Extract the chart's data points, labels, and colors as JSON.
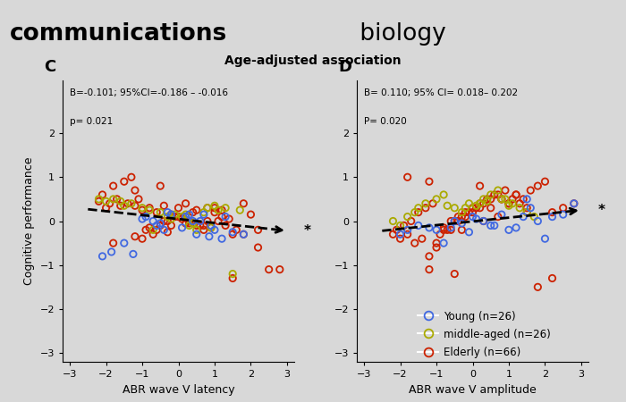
{
  "title_bold": "communications",
  "title_regular": " biology",
  "subtitle": "Age-adjusted association",
  "panel_C": {
    "label": "C",
    "annotation_line1": "B=-0.101; 95%CI=-0.186 – -0.016",
    "annotation_line2": "p= 0.021",
    "xlabel": "ABR wave V latency",
    "ylabel": "Cognitive performance",
    "xlim": [
      -3.2,
      3.2
    ],
    "ylim": [
      -3.2,
      3.2
    ],
    "xticks": [
      -3,
      -2,
      -1,
      0,
      1,
      2,
      3
    ],
    "yticks": [
      -3,
      -2,
      -1,
      0,
      1,
      2
    ],
    "trend_x_start": -2.5,
    "trend_x_end": 3.0,
    "trend_y_start": 0.27,
    "trend_y_end": -0.22,
    "young_x": [
      -1.85,
      -1.25,
      0.3,
      0.5,
      1.2,
      -0.5,
      0.1,
      -0.3,
      -2.1,
      1.5,
      0.9,
      -0.7,
      0.2,
      1.0,
      -1.5,
      0.6,
      -0.2,
      1.8,
      -1.0,
      0.4,
      -0.6,
      1.3,
      -0.4,
      0.7,
      -0.9,
      0.85
    ],
    "young_y": [
      -0.7,
      -0.75,
      0.15,
      -0.3,
      -0.4,
      -0.05,
      -0.15,
      0.2,
      -0.8,
      -0.25,
      -0.1,
      0.0,
      0.1,
      -0.2,
      -0.5,
      0.0,
      0.15,
      -0.3,
      0.05,
      0.0,
      -0.1,
      0.1,
      -0.2,
      0.15,
      0.1,
      -0.35
    ],
    "middleaged_x": [
      -2.0,
      -1.8,
      -1.5,
      -1.3,
      -1.0,
      -0.8,
      -0.5,
      -0.3,
      -0.1,
      0.1,
      0.3,
      0.5,
      0.7,
      0.9,
      1.1,
      1.3,
      1.5,
      1.7,
      -1.6,
      -0.7,
      0.2,
      0.8,
      -2.2,
      -0.2,
      0.4,
      1.0
    ],
    "middleaged_y": [
      0.45,
      0.5,
      0.35,
      0.4,
      0.3,
      0.25,
      0.2,
      0.1,
      0.15,
      0.1,
      -0.1,
      -0.2,
      0.2,
      -0.15,
      0.25,
      0.3,
      -1.2,
      0.25,
      0.45,
      -0.2,
      0.15,
      0.3,
      0.5,
      0.05,
      -0.05,
      0.35
    ],
    "elderly_x": [
      -2.2,
      -2.0,
      -1.8,
      -1.6,
      -1.4,
      -1.2,
      -1.0,
      -0.8,
      -0.6,
      -0.4,
      -0.2,
      0.0,
      0.2,
      0.4,
      0.6,
      0.8,
      1.0,
      1.2,
      1.4,
      1.6,
      1.8,
      2.0,
      -2.1,
      -1.9,
      -1.7,
      -1.5,
      -1.3,
      -1.1,
      -0.9,
      -0.7,
      -0.5,
      -0.3,
      -0.1,
      0.1,
      0.3,
      0.5,
      0.7,
      0.9,
      1.1,
      1.3,
      1.5,
      2.2,
      2.8,
      -0.8,
      -0.6,
      -0.4,
      -0.2,
      0.0,
      0.2,
      0.8,
      1.0,
      1.2,
      -1.2,
      -1.0,
      -0.3,
      0.5,
      1.5,
      2.5,
      0.3,
      0.7,
      1.8,
      2.2,
      -0.5,
      -1.8,
      -1.2,
      0.2
    ],
    "elderly_y": [
      0.45,
      0.3,
      0.8,
      0.35,
      0.4,
      0.7,
      0.25,
      0.3,
      0.2,
      0.35,
      0.15,
      0.3,
      0.1,
      0.2,
      -0.1,
      0.0,
      0.3,
      0.1,
      0.05,
      -0.2,
      0.4,
      0.15,
      0.6,
      0.4,
      0.5,
      0.9,
      1.0,
      0.5,
      -0.2,
      -0.3,
      -0.1,
      0.0,
      0.1,
      0.05,
      -0.05,
      -0.1,
      -0.2,
      -0.15,
      0.0,
      -0.1,
      -0.3,
      -0.6,
      -1.1,
      -0.15,
      -0.2,
      0.0,
      -0.1,
      0.1,
      -0.05,
      0.3,
      0.2,
      0.25,
      -0.35,
      -0.4,
      -0.25,
      0.25,
      -1.3,
      -1.1,
      0.0,
      -0.1,
      -0.3,
      -0.2,
      0.8,
      -0.5,
      0.35,
      0.4
    ]
  },
  "panel_D": {
    "label": "D",
    "annotation_line1": "B= 0.110; 95% CI= 0.018– 0.202",
    "annotation_line2": "P= 0.020",
    "xlabel": "ABR wave V amplitude",
    "ylabel": "",
    "xlim": [
      -3.2,
      3.2
    ],
    "ylim": [
      -3.2,
      3.2
    ],
    "xticks": [
      -3,
      -2,
      -1,
      0,
      1,
      2,
      3
    ],
    "yticks": [
      -3,
      -2,
      -1,
      0,
      1,
      2
    ],
    "trend_x_start": -2.5,
    "trend_x_end": 3.0,
    "trend_y_start": -0.22,
    "trend_y_end": 0.25,
    "young_x": [
      -2.0,
      -1.5,
      -1.0,
      0.5,
      1.0,
      1.5,
      2.0,
      2.5,
      -0.5,
      0.0,
      1.8,
      -0.8,
      0.3,
      1.2,
      -1.2,
      0.8,
      2.2,
      -0.3,
      0.6,
      1.6,
      -0.6,
      2.8,
      -1.8,
      0.1,
      1.4,
      -0.1
    ],
    "young_y": [
      -0.3,
      -0.1,
      -0.2,
      -0.1,
      -0.2,
      0.5,
      -0.4,
      0.15,
      0.0,
      0.1,
      0.0,
      -0.5,
      0.0,
      -0.15,
      -0.15,
      0.15,
      0.1,
      -0.05,
      -0.1,
      0.3,
      -0.15,
      0.4,
      -0.2,
      0.05,
      0.1,
      -0.25
    ],
    "middleaged_x": [
      -2.0,
      -1.8,
      -1.5,
      -1.3,
      -1.0,
      -0.8,
      -0.5,
      -0.3,
      -0.1,
      0.1,
      0.3,
      0.5,
      0.7,
      0.9,
      1.1,
      1.3,
      1.5,
      1.7,
      -1.6,
      -0.7,
      0.2,
      0.8,
      -2.2,
      -0.2,
      0.4,
      1.0
    ],
    "middleaged_y": [
      -0.1,
      0.1,
      0.3,
      0.4,
      0.5,
      0.6,
      0.3,
      0.2,
      0.4,
      0.35,
      0.5,
      0.6,
      0.7,
      0.5,
      0.4,
      0.3,
      0.2,
      0.1,
      0.2,
      0.35,
      0.4,
      0.5,
      0.0,
      0.3,
      0.45,
      0.35
    ],
    "elderly_x": [
      -2.2,
      -2.0,
      -1.8,
      -1.6,
      -1.4,
      -1.2,
      -1.0,
      -0.8,
      -0.6,
      -0.4,
      -0.2,
      0.0,
      0.2,
      0.4,
      0.6,
      0.8,
      1.0,
      1.2,
      1.4,
      1.6,
      1.8,
      2.0,
      -2.1,
      -1.9,
      -1.7,
      -1.5,
      -1.3,
      -1.1,
      -0.9,
      -0.7,
      -0.5,
      -0.3,
      -0.1,
      0.1,
      0.3,
      0.5,
      0.7,
      0.9,
      1.1,
      1.3,
      1.5,
      2.2,
      2.8,
      -0.8,
      -0.6,
      -0.4,
      -0.2,
      0.0,
      0.2,
      0.8,
      1.0,
      1.2,
      -1.2,
      -1.0,
      -0.3,
      0.5,
      1.5,
      2.5,
      0.3,
      0.7,
      1.8,
      2.2,
      -0.5,
      -1.8,
      -1.2,
      0.2
    ],
    "elderly_y": [
      -0.3,
      -0.4,
      -0.3,
      -0.5,
      -0.4,
      -1.1,
      -0.6,
      -0.2,
      0.0,
      0.1,
      0.2,
      0.3,
      0.4,
      0.5,
      0.6,
      0.5,
      0.4,
      0.6,
      0.5,
      0.7,
      0.8,
      0.9,
      -0.2,
      -0.1,
      0.0,
      0.2,
      0.3,
      0.4,
      -0.3,
      -0.2,
      0.0,
      0.1,
      0.2,
      0.3,
      0.4,
      0.5,
      0.6,
      0.7,
      0.5,
      0.4,
      0.3,
      0.2,
      0.4,
      -0.15,
      -0.2,
      0.0,
      0.1,
      0.2,
      0.3,
      0.5,
      0.4,
      0.6,
      -0.8,
      -0.5,
      -0.2,
      0.3,
      0.2,
      0.3,
      0.0,
      0.1,
      -1.5,
      -1.3,
      -1.2,
      1.0,
      0.9,
      0.8
    ]
  },
  "young_color": "#4169E1",
  "middleaged_color": "#AAAA00",
  "elderly_color": "#CC2200",
  "marker_size": 28,
  "legend_labels": [
    "Young (n=26)",
    "middle-aged (n=26)",
    "Elderly (n=66)"
  ],
  "bg_color": "#d8d8d8"
}
